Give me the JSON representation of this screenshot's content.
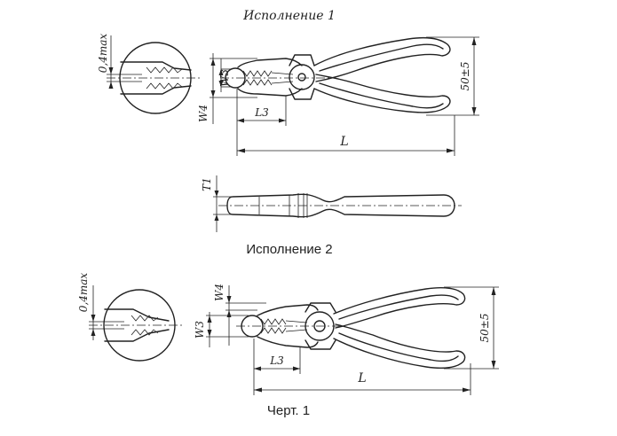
{
  "captions": {
    "variant1": "Исполнение 1",
    "variant2": "Исполнение 2",
    "figure": "Черт. 1"
  },
  "dimensions": {
    "tolerance": "0,4max",
    "w3": "W3",
    "w4": "W4",
    "l3": "L3",
    "length": "L",
    "height": "50±5",
    "t1": "T1"
  }
}
